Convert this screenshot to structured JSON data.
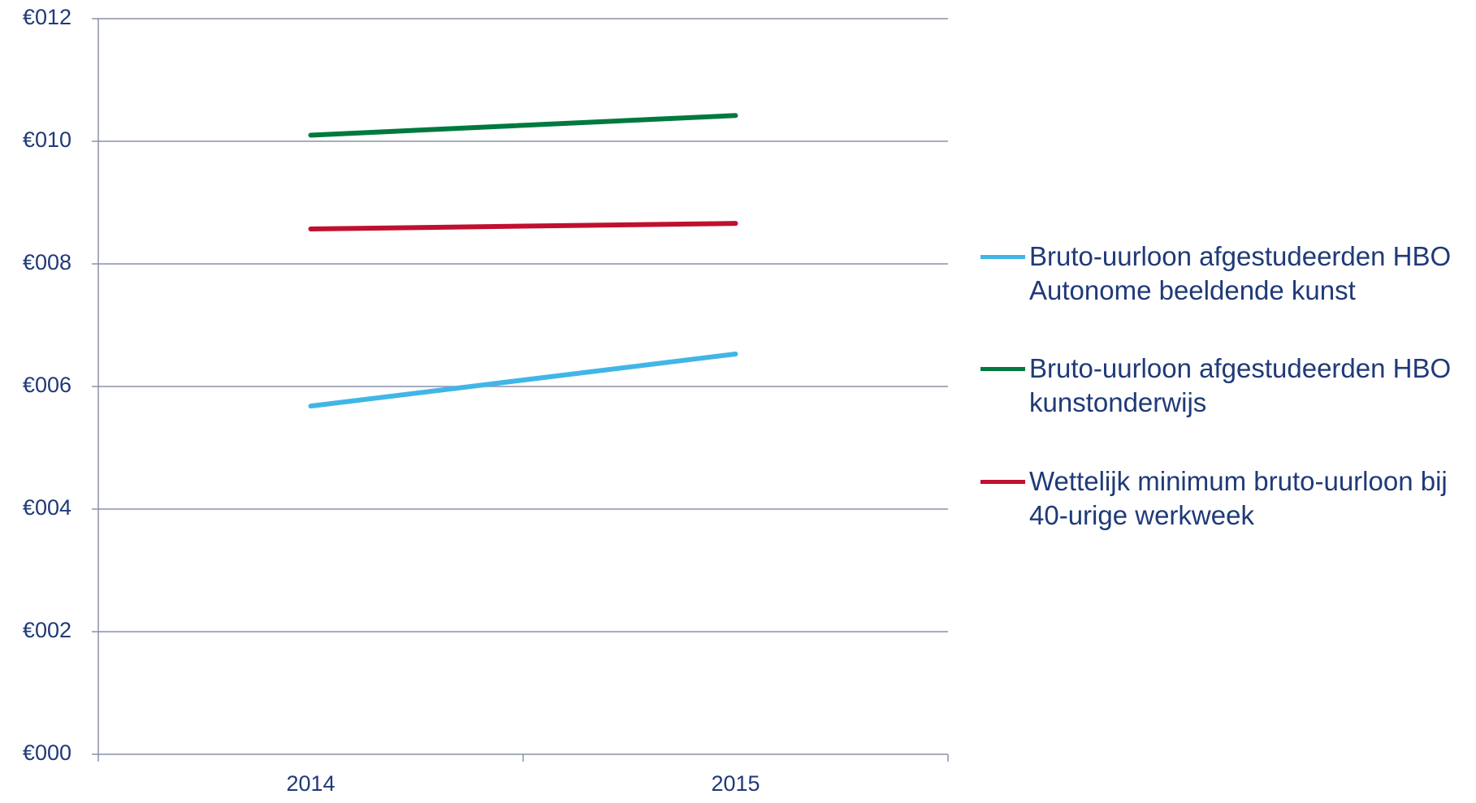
{
  "chart_data": {
    "type": "line",
    "categories": [
      "2014",
      "2015"
    ],
    "series": [
      {
        "name": "Bruto-uurloon afgestudeerden HBO Autonome beeldende kunst",
        "color": "#41b6e6",
        "values": [
          5.68,
          6.53
        ]
      },
      {
        "name": "Bruto-uurloon afgestudeerden HBO kunstonderwijs",
        "color": "#00793f",
        "values": [
          10.1,
          10.42
        ]
      },
      {
        "name": "Wettelijk minimum bruto-uurloon bij 40-urige werkweek",
        "color": "#c0102f",
        "values": [
          8.57,
          8.66
        ]
      }
    ],
    "ylim": [
      0,
      12
    ],
    "yticks": [
      {
        "value": 0,
        "label": "€000"
      },
      {
        "value": 2,
        "label": "€002"
      },
      {
        "value": 4,
        "label": "€004"
      },
      {
        "value": 6,
        "label": "€006"
      },
      {
        "value": 8,
        "label": "€008"
      },
      {
        "value": 10,
        "label": "€010"
      },
      {
        "value": 12,
        "label": "€012"
      }
    ],
    "grid": true,
    "legend": "right"
  }
}
